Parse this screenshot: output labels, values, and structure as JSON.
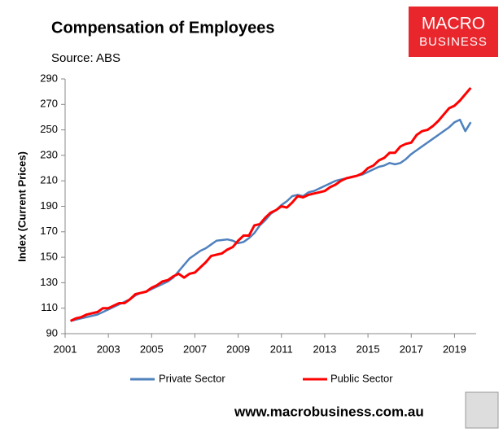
{
  "header": {
    "logo_top": "MACRO",
    "logo_bottom": "BUSINESS"
  },
  "chart_data": {
    "type": "line",
    "title": "Compensation of Employees",
    "subtitle": "Source: ABS",
    "y_label": "Index (Current Prices)",
    "x": [
      2001.25,
      2001.5,
      2001.75,
      2002,
      2002.25,
      2002.5,
      2002.75,
      2003,
      2003.25,
      2003.5,
      2003.75,
      2004,
      2004.25,
      2004.5,
      2004.75,
      2005,
      2005.25,
      2005.5,
      2005.75,
      2006,
      2006.25,
      2006.5,
      2006.75,
      2007,
      2007.25,
      2007.5,
      2007.75,
      2008,
      2008.25,
      2008.5,
      2008.75,
      2009,
      2009.25,
      2009.5,
      2009.75,
      2010,
      2010.25,
      2010.5,
      2010.75,
      2011,
      2011.25,
      2011.5,
      2011.75,
      2012,
      2012.25,
      2012.5,
      2012.75,
      2013,
      2013.25,
      2013.5,
      2013.75,
      2014,
      2014.25,
      2014.5,
      2014.75,
      2015,
      2015.25,
      2015.5,
      2015.75,
      2016,
      2016.25,
      2016.5,
      2016.75,
      2017,
      2017.25,
      2017.5,
      2017.75,
      2018,
      2018.25,
      2018.5,
      2018.75,
      2019,
      2019.25,
      2019.5,
      2019.75
    ],
    "series": [
      {
        "name": "Private Sector",
        "color": "#4f81bd",
        "values": [
          100,
          101,
          102,
          103,
          104,
          105,
          107,
          109,
          111,
          113,
          115,
          117,
          120,
          122,
          123,
          125,
          127,
          129,
          131,
          134,
          139,
          144,
          149,
          152,
          155,
          157,
          160,
          163,
          163.5,
          164,
          163,
          161,
          162,
          165,
          169,
          175,
          179,
          184,
          187,
          191,
          194,
          198,
          199,
          198,
          201,
          202,
          204,
          206,
          208,
          210,
          211,
          212,
          213,
          214,
          215,
          217,
          219,
          221,
          222,
          224,
          223,
          224,
          227,
          231,
          234,
          237,
          240,
          243,
          246,
          249,
          252,
          256,
          258,
          249,
          256
        ]
      },
      {
        "name": "Public Sector",
        "color": "#ff0000",
        "values": [
          100,
          102,
          103,
          105,
          106,
          107,
          110,
          110,
          112,
          114,
          114,
          117,
          121,
          122,
          123,
          126,
          128,
          131,
          132,
          135,
          137,
          134,
          137,
          138,
          142,
          146,
          151,
          152,
          153,
          156,
          158,
          163,
          167,
          167,
          175,
          176,
          181,
          185,
          187,
          190,
          189,
          193,
          198,
          197,
          199,
          200,
          201,
          202,
          205,
          207,
          210,
          212,
          213,
          214,
          216,
          220,
          222,
          226,
          228,
          232,
          232,
          237,
          239,
          240,
          246,
          249,
          250,
          253,
          257,
          262,
          267,
          269,
          273,
          278,
          283
        ]
      }
    ],
    "xlim": [
      2001,
      2020
    ],
    "xticks": [
      2001,
      2003,
      2005,
      2007,
      2009,
      2011,
      2013,
      2015,
      2017,
      2019
    ],
    "ylim": [
      90,
      290
    ],
    "yticks": [
      90,
      110,
      130,
      150,
      170,
      190,
      210,
      230,
      250,
      270,
      290
    ]
  },
  "footer": {
    "url": "www.macrobusiness.com.au"
  }
}
